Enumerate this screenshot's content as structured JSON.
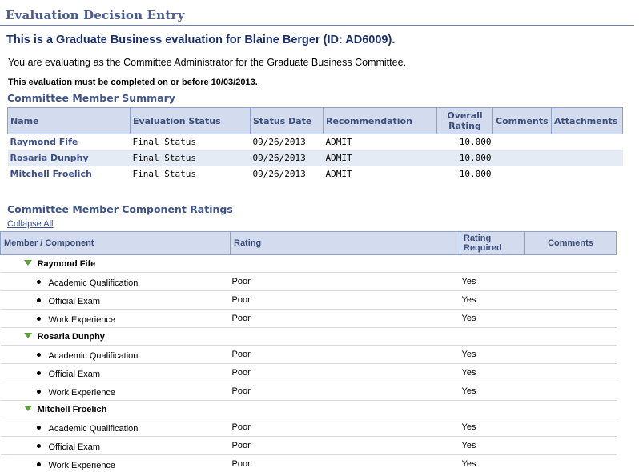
{
  "page": {
    "title": "Evaluation Decision Entry",
    "heading": "This is a Graduate Business evaluation for Blaine Berger (ID: AD6009).",
    "intro": "You are evaluating as the Committee Administrator for the Graduate Business Committee.",
    "deadline": "This evaluation must be completed on or before 10/03/2013."
  },
  "summary": {
    "title": "Committee Member Summary",
    "columns": {
      "name": "Name",
      "status": "Evaluation Status",
      "date": "Status Date",
      "recommendation": "Recommendation",
      "rating_line1": "Overall",
      "rating_line2": "Rating",
      "comments": "Comments",
      "attachments": "Attachments"
    },
    "rows": [
      {
        "name": "Raymond Fife",
        "status": "Final Status",
        "date": "09/26/2013",
        "recommendation": "ADMIT",
        "rating": "10.000"
      },
      {
        "name": "Rosaria Dunphy",
        "status": "Final Status",
        "date": "09/26/2013",
        "recommendation": "ADMIT",
        "rating": "10.000"
      },
      {
        "name": "Mitchell Froelich",
        "status": "Final Status",
        "date": "09/26/2013",
        "recommendation": "ADMIT",
        "rating": "10.000"
      }
    ]
  },
  "components": {
    "title": "Committee Member Component Ratings",
    "collapse_all": "Collapse All",
    "columns": {
      "member": "Member / Component",
      "rating": "Rating",
      "required_line1": "Rating",
      "required_line2": "Required",
      "comments": "Comments"
    },
    "members": [
      {
        "name": "Raymond Fife",
        "items": [
          {
            "component": "Academic Qualification",
            "rating": "Poor",
            "required": "Yes"
          },
          {
            "component": "Official Exam",
            "rating": "Poor",
            "required": "Yes"
          },
          {
            "component": "Work Experience",
            "rating": "Poor",
            "required": "Yes"
          }
        ]
      },
      {
        "name": "Rosaria Dunphy",
        "items": [
          {
            "component": "Academic Qualification",
            "rating": "Poor",
            "required": "Yes"
          },
          {
            "component": "Official Exam",
            "rating": "Poor",
            "required": "Yes"
          },
          {
            "component": "Work Experience",
            "rating": "Poor",
            "required": "Yes"
          }
        ]
      },
      {
        "name": "Mitchell Froelich",
        "items": [
          {
            "component": "Academic Qualification",
            "rating": "Poor",
            "required": "Yes"
          },
          {
            "component": "Official Exam",
            "rating": "Poor",
            "required": "Yes"
          },
          {
            "component": "Work Experience",
            "rating": "Poor",
            "required": "Yes"
          }
        ]
      }
    ]
  },
  "icons": {
    "expanded_member": "triangle-down-icon",
    "component_bullet": "bullet-icon"
  },
  "colors": {
    "title_text": "#4a5a8c",
    "heading_text": "#1b2f6b",
    "header_bg": "#d2dcee",
    "alt_row_bg": "#e5ebf5",
    "link_text": "#3b4f8a",
    "expand_triangle": "#5ca038"
  }
}
